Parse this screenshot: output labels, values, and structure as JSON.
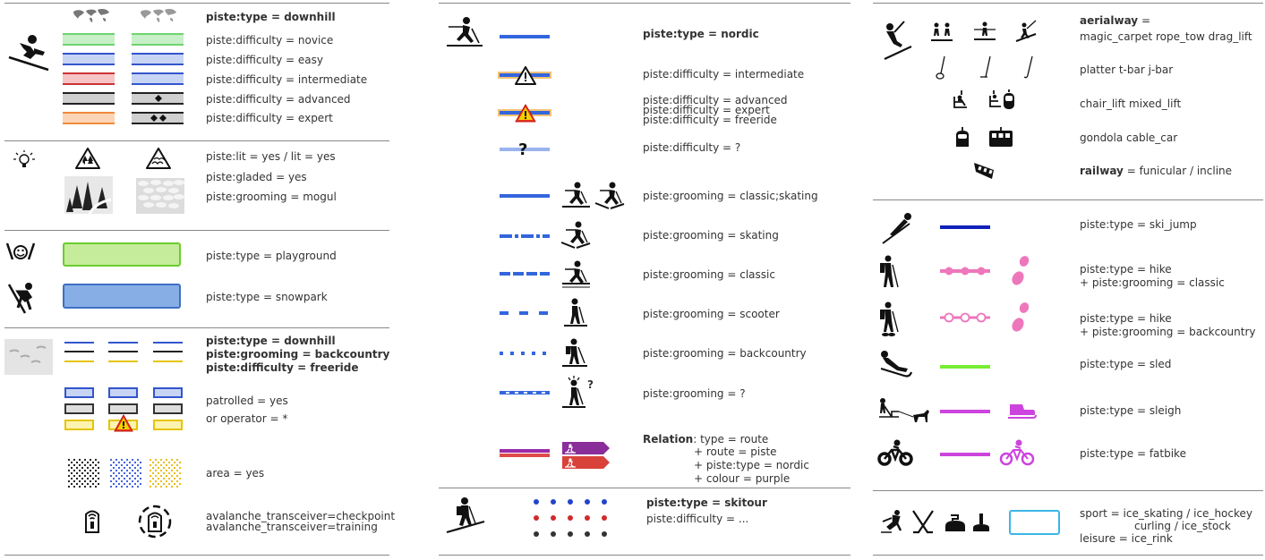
{
  "col1": {
    "downhill": {
      "type": "piste:type = downhill",
      "difficulties": [
        "piste:difficulty = novice",
        "piste:difficulty = easy",
        "piste:difficulty = intermediate",
        "piste:difficulty = advanced",
        "piste:difficulty = expert"
      ]
    },
    "features": {
      "lit": "piste:lit = yes / lit = yes",
      "gladed": "piste:gladed = yes",
      "mogul": "piste:grooming = mogul"
    },
    "areas": {
      "playground": "piste:type = playground",
      "snowpark": "piste:type = snowpark"
    },
    "backcountry": {
      "line1": "piste:type = downhill",
      "line2": "piste:grooming = backcountry",
      "line3": "piste:difficulty = freeride",
      "patrolled1": "patrolled = yes",
      "patrolled2": "or  operator = *",
      "area": "area = yes",
      "avalanche1": "avalanche_transceiver=checkpoint",
      "avalanche2": "avalanche_transceiver=training"
    }
  },
  "col2": {
    "nordic": "piste:type = nordic",
    "intermediate": "piste:difficulty = intermediate",
    "advanced": "piste:difficulty = advanced",
    "expert": "piste:difficulty = expert",
    "freeride": "piste:difficulty = freeride",
    "unknown": "piste:difficulty = ?",
    "grooming": [
      "piste:grooming = classic;skating",
      "piste:grooming = skating",
      "piste:grooming = classic",
      "piste:grooming = scooter",
      "piste:grooming = backcountry",
      "piste:grooming = ?"
    ],
    "relation": {
      "head": "Relation",
      "l1": ": type = route",
      "l2": "+ route = piste",
      "l3": "+ piste:type = nordic",
      "l4": "+ colour = purple"
    },
    "skitour": "piste:type = skitour",
    "skitour_diff": "piste:difficulty = ...",
    "question_mark": "?"
  },
  "col3": {
    "aerialway_head": "aerialway",
    "aerialway_eq": " =",
    "aerialway_line2": "magic_carpet  rope_tow  drag_lift",
    "platter": "platter   t-bar   j-bar",
    "chair": "chair_lift   mixed_lift",
    "gondola": "gondola   cable_car",
    "railway_head": "railway",
    "railway_rest": " = funicular / incline",
    "ski_jump": "piste:type = ski_jump",
    "hike1a": "piste:type = hike",
    "hike1b": "+ piste:grooming = classic",
    "hike2a": "piste:type = hike",
    "hike2b": "+ piste:grooming = backcountry",
    "sled": "piste:type = sled",
    "sleigh": "piste:type = sleigh",
    "fatbike": "piste:type = fatbike",
    "sport1": "sport = ice_skating / ice_hockey",
    "sport2": "curling / ice_stock",
    "sport3": "leisure = ice_rink"
  },
  "colors": {
    "novice": "#6fd36f",
    "easy": "#5a7be0",
    "intermediate": "#e04848",
    "advanced": "#333333",
    "expert": "#f08a3c",
    "nordic": "#3366dd",
    "hike": "#ee77bb",
    "sled": "#77ee33",
    "sleigh": "#cc44dd",
    "skijump": "#1122bb"
  }
}
